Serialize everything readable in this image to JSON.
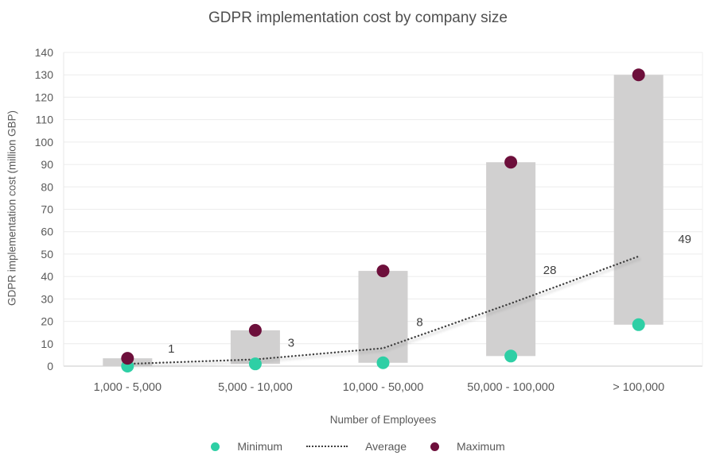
{
  "title": "GDPR implementation cost by company size",
  "axes": {
    "x_title": "Number of Employees",
    "y_title": "GDPR implementation cost (million GBP)"
  },
  "colors": {
    "minimum": "#2ecfa5",
    "maximum": "#6d0f3b",
    "average_line": "#3f3f3f",
    "range_bar": "#d1d0d0",
    "gridline": "#ececec",
    "axis_line": "#c8c8c8",
    "tick_text": "#595959",
    "value_label_text": "#3f3f3f"
  },
  "chart_data": {
    "type": "bar",
    "subtype": "floating-range-bars-with-min-max-points-and-average-line",
    "title": "GDPR implementation cost by company size",
    "xlabel": "Number of Employees",
    "ylabel": "GDPR implementation cost (million GBP)",
    "ylim": [
      0,
      140
    ],
    "yticks": [
      0,
      10,
      20,
      30,
      40,
      50,
      60,
      70,
      80,
      90,
      100,
      110,
      120,
      130,
      140
    ],
    "grid": true,
    "legend_position": "bottom",
    "categories": [
      "1,000 - 5,000",
      "5,000 - 10,000",
      "10,000 - 50,000",
      "50,000 - 100,000",
      "> 100,000"
    ],
    "series": [
      {
        "name": "Minimum",
        "type": "scatter",
        "color": "#2ecfa5",
        "values": [
          0,
          1,
          1.5,
          4.5,
          18.5
        ]
      },
      {
        "name": "Average",
        "type": "line",
        "style": "dotted",
        "color": "#3f3f3f",
        "values": [
          1,
          3,
          8,
          28,
          49
        ],
        "point_labels": [
          "1",
          "3",
          "8",
          "28",
          "49"
        ]
      },
      {
        "name": "Maximum",
        "type": "scatter",
        "color": "#6d0f3b",
        "values": [
          3.5,
          16,
          42.5,
          91,
          130
        ]
      }
    ],
    "range_bars": {
      "from_series": "Minimum",
      "to_series": "Maximum",
      "color": "#d1d0d0"
    }
  },
  "legend": {
    "minimum_label": "Minimum",
    "average_label": "Average",
    "maximum_label": "Maximum"
  }
}
